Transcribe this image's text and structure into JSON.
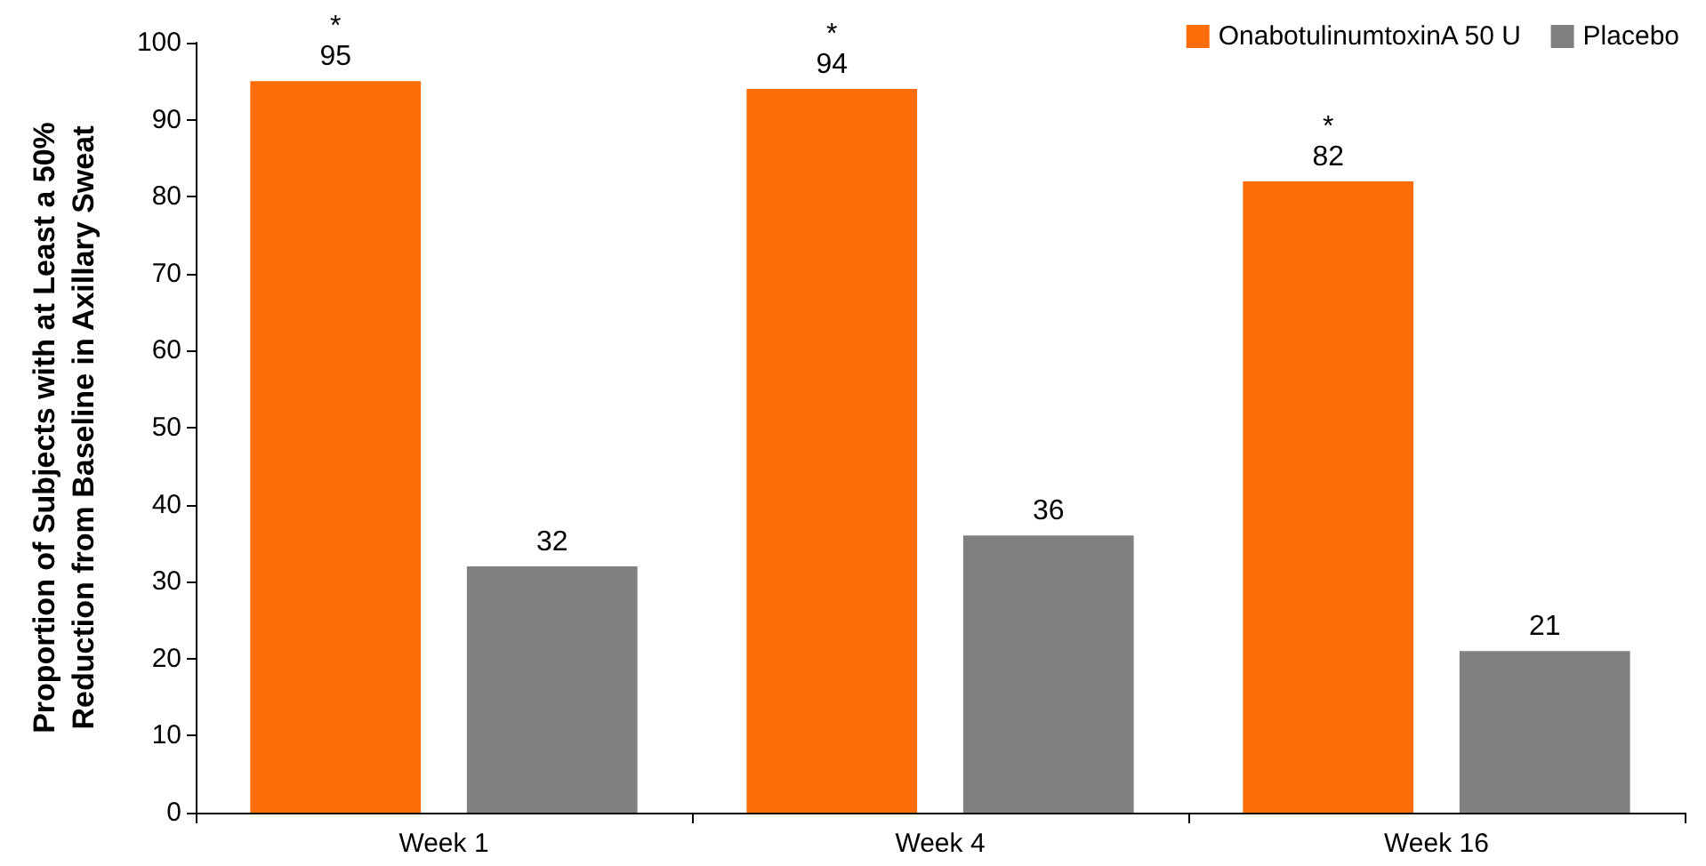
{
  "chart_data": {
    "type": "bar",
    "ylabel": "Proportion of Subjects with at Least a 50%\nReduction from Baseline in Axillary Sweat",
    "categories": [
      "Week 1",
      "Week 4",
      "Week 16"
    ],
    "series": [
      {
        "name": "OnabotulinumtoxinA 50 U",
        "color": "#ff6d0a",
        "values": [
          95,
          94,
          82
        ]
      },
      {
        "name": "Placebo",
        "color": "#808080",
        "values": [
          32,
          36,
          21
        ]
      }
    ],
    "annotations": [
      "*",
      "*",
      "*"
    ],
    "ylim": [
      0,
      100
    ],
    "yticks": [
      0,
      10,
      20,
      30,
      40,
      50,
      60,
      70,
      80,
      90,
      100
    ],
    "grid": false,
    "legend": "top right",
    "data_labels": true
  }
}
